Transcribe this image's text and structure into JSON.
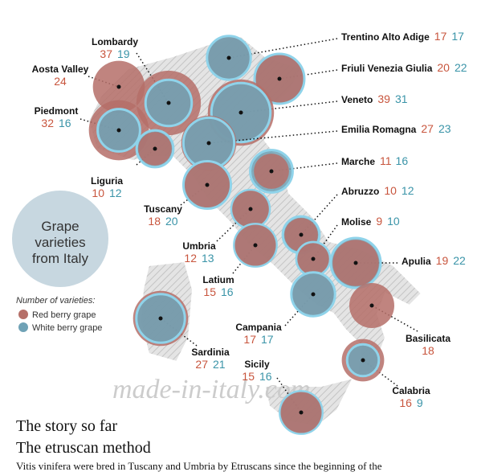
{
  "title": "Grape varieties from Italy",
  "legend": {
    "title": "Number of varieties:",
    "red": "Red berry grape",
    "white": "White berry grape",
    "red_color": "#b56f68",
    "white_color": "#6fa2b6"
  },
  "watermark": "made-in-italy.com",
  "regions": [
    {
      "name": "Lombardy",
      "red": 37,
      "white": 19
    },
    {
      "name": "Trentino Alto Adige",
      "red": 17,
      "white": 17
    },
    {
      "name": "Aosta Valley",
      "red": 24
    },
    {
      "name": "Friuli Venezia Giulia",
      "red": 20,
      "white": 22
    },
    {
      "name": "Piedmont",
      "red": 32,
      "white": 16
    },
    {
      "name": "Veneto",
      "red": 39,
      "white": 31
    },
    {
      "name": "Emilia Romagna",
      "red": 27,
      "white": 23
    },
    {
      "name": "Liguria",
      "red": 10,
      "white": 12
    },
    {
      "name": "Marche",
      "red": 11,
      "white": 16
    },
    {
      "name": "Tuscany",
      "red": 18,
      "white": 20
    },
    {
      "name": "Abruzzo",
      "red": 10,
      "white": 12
    },
    {
      "name": "Umbria",
      "red": 12,
      "white": 13
    },
    {
      "name": "Molise",
      "red": 9,
      "white": 10
    },
    {
      "name": "Apulia",
      "red": 19,
      "white": 22
    },
    {
      "name": "Latium",
      "red": 15,
      "white": 16
    },
    {
      "name": "Campania",
      "red": 17,
      "white": 17
    },
    {
      "name": "Basilicata",
      "red": 18
    },
    {
      "name": "Sardinia",
      "red": 27,
      "white": 21
    },
    {
      "name": "Sicily",
      "red": 15,
      "white": 16
    },
    {
      "name": "Calabria",
      "red": 16,
      "white": 9
    }
  ],
  "article": {
    "kicker": "The story so far",
    "headline": "The etruscan method",
    "text": "Vitis vinifera were bred in Tuscany and Umbria by Etruscans since the beginning of the"
  }
}
